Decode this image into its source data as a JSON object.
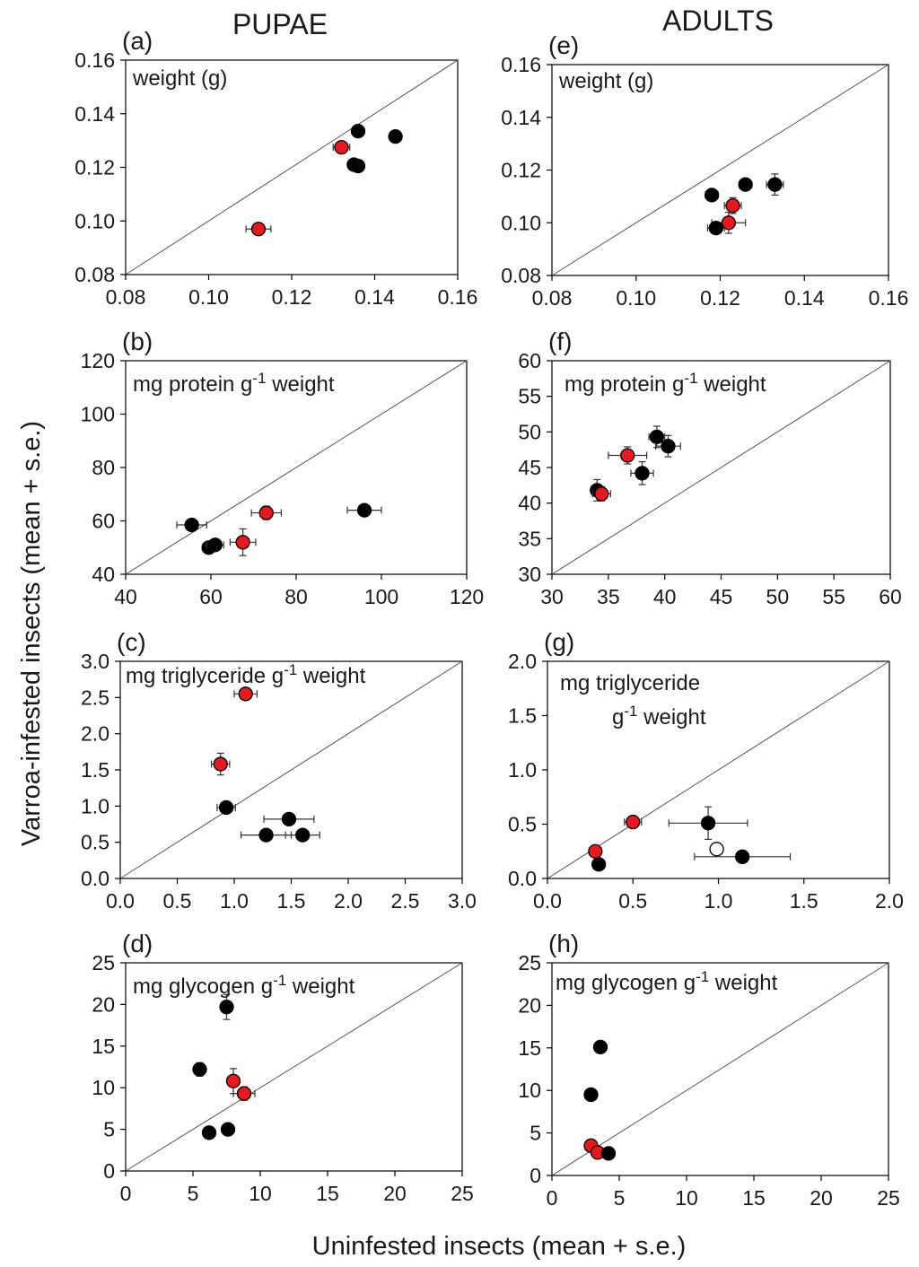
{
  "figure": {
    "column_titles": [
      "PUPAE",
      "ADULTS"
    ],
    "ylabel": "Varroa-infested insects (mean + s.e.)",
    "xlabel": "Uninfested insects (mean + s.e.)",
    "colors": {
      "infested": "#e8191e",
      "uninfested": "#000000",
      "open": "#ffffff",
      "axis": "#000000",
      "diag": "#555555"
    }
  },
  "chart_data": [
    {
      "type": "scatter",
      "id": "a",
      "panel_label": "(a)",
      "title": "weight (g)",
      "xlim": [
        0.08,
        0.16
      ],
      "ylim": [
        0.08,
        0.16
      ],
      "xticks": [
        "0.08",
        "0.10",
        "0.12",
        "0.14",
        "0.16"
      ],
      "yticks": [
        "0.08",
        "0.10",
        "0.12",
        "0.14",
        "0.16"
      ],
      "points": [
        {
          "x": 0.112,
          "y": 0.097,
          "xerr": 0.003,
          "yerr": 0.0015,
          "color": "red"
        },
        {
          "x": 0.132,
          "y": 0.1275,
          "xerr": 0.002,
          "yerr": 0.0015,
          "color": "red"
        },
        {
          "x": 0.136,
          "y": 0.1335,
          "xerr": 0.001,
          "yerr": 0.001,
          "color": "black"
        },
        {
          "x": 0.145,
          "y": 0.1315,
          "xerr": 0.001,
          "yerr": 0.0015,
          "color": "black"
        },
        {
          "x": 0.135,
          "y": 0.121,
          "xerr": 0.001,
          "yerr": 0.001,
          "color": "black"
        },
        {
          "x": 0.136,
          "y": 0.1205,
          "xerr": 0.001,
          "yerr": 0.001,
          "color": "black"
        }
      ]
    },
    {
      "type": "scatter",
      "id": "e",
      "panel_label": "(e)",
      "title": "weight (g)",
      "xlim": [
        0.08,
        0.16
      ],
      "ylim": [
        0.08,
        0.16
      ],
      "xticks": [
        "0.08",
        "0.10",
        "0.12",
        "0.14",
        "0.16"
      ],
      "yticks": [
        "0.08",
        "0.10",
        "0.12",
        "0.14",
        "0.16"
      ],
      "points": [
        {
          "x": 0.118,
          "y": 0.1105,
          "xerr": 0.0015,
          "yerr": 0.0015,
          "color": "black"
        },
        {
          "x": 0.126,
          "y": 0.1145,
          "xerr": 0.0015,
          "yerr": 0.002,
          "color": "black"
        },
        {
          "x": 0.133,
          "y": 0.1145,
          "xerr": 0.002,
          "yerr": 0.004,
          "color": "black"
        },
        {
          "x": 0.123,
          "y": 0.1065,
          "xerr": 0.002,
          "yerr": 0.003,
          "color": "red"
        },
        {
          "x": 0.122,
          "y": 0.1,
          "xerr": 0.004,
          "yerr": 0.004,
          "color": "red"
        },
        {
          "x": 0.119,
          "y": 0.098,
          "xerr": 0.002,
          "yerr": 0.002,
          "color": "black"
        }
      ]
    },
    {
      "type": "scatter",
      "id": "b",
      "panel_label": "(b)",
      "title": "mg protein g-1 weight",
      "xlim": [
        40,
        120
      ],
      "ylim": [
        40,
        120
      ],
      "xticks": [
        "40",
        "60",
        "80",
        "100",
        "120"
      ],
      "yticks": [
        "40",
        "60",
        "80",
        "100",
        "120"
      ],
      "points": [
        {
          "x": 55.5,
          "y": 58.5,
          "xerr": 3.5,
          "yerr": 2,
          "color": "black"
        },
        {
          "x": 59.5,
          "y": 50,
          "xerr": 1.5,
          "yerr": 1.5,
          "color": "black"
        },
        {
          "x": 61,
          "y": 51,
          "xerr": 2,
          "yerr": 1.5,
          "color": "black"
        },
        {
          "x": 67.5,
          "y": 52,
          "xerr": 3,
          "yerr": 5,
          "color": "red"
        },
        {
          "x": 73,
          "y": 63,
          "xerr": 3.5,
          "yerr": 2.5,
          "color": "red"
        },
        {
          "x": 96,
          "y": 64,
          "xerr": 4,
          "yerr": 2,
          "color": "black"
        }
      ]
    },
    {
      "type": "scatter",
      "id": "f",
      "panel_label": "(f)",
      "title": "mg protein g-1 weight",
      "xlim": [
        30,
        60
      ],
      "ylim": [
        30,
        60
      ],
      "xticks": [
        "30",
        "35",
        "40",
        "45",
        "50",
        "55",
        "60"
      ],
      "yticks": [
        "30",
        "35",
        "40",
        "45",
        "50",
        "55",
        "60"
      ],
      "points": [
        {
          "x": 39.3,
          "y": 49.3,
          "xerr": 0.7,
          "yerr": 1.5,
          "color": "black"
        },
        {
          "x": 40.3,
          "y": 48,
          "xerr": 1.1,
          "yerr": 1.5,
          "color": "black"
        },
        {
          "x": 36.7,
          "y": 46.7,
          "xerr": 1.7,
          "yerr": 1.2,
          "color": "red"
        },
        {
          "x": 38,
          "y": 44.2,
          "xerr": 1,
          "yerr": 1.6,
          "color": "black"
        },
        {
          "x": 34,
          "y": 41.8,
          "xerr": 0.5,
          "yerr": 1.5,
          "color": "black"
        },
        {
          "x": 34.4,
          "y": 41.3,
          "xerr": 0.8,
          "yerr": 1,
          "color": "red"
        }
      ]
    },
    {
      "type": "scatter",
      "id": "c",
      "panel_label": "(c)",
      "title": "mg triglyceride g-1 weight",
      "xlim": [
        0,
        3
      ],
      "ylim": [
        0,
        3
      ],
      "xticks": [
        "0.0",
        "0.5",
        "1.0",
        "1.5",
        "2.0",
        "2.5",
        "3.0"
      ],
      "yticks": [
        "0.0",
        "0.5",
        "1.0",
        "1.5",
        "2.0",
        "2.5",
        "3.0"
      ],
      "points": [
        {
          "x": 1.1,
          "y": 2.55,
          "xerr": 0.1,
          "yerr": 0.05,
          "color": "red"
        },
        {
          "x": 0.88,
          "y": 1.58,
          "xerr": 0.08,
          "yerr": 0.15,
          "color": "red"
        },
        {
          "x": 0.93,
          "y": 0.98,
          "xerr": 0.08,
          "yerr": 0.05,
          "color": "black"
        },
        {
          "x": 1.48,
          "y": 0.82,
          "xerr": 0.22,
          "yerr": 0.05,
          "color": "black"
        },
        {
          "x": 1.28,
          "y": 0.6,
          "xerr": 0.22,
          "yerr": 0.03,
          "color": "black"
        },
        {
          "x": 1.6,
          "y": 0.6,
          "xerr": 0.15,
          "yerr": 0.03,
          "color": "black"
        }
      ]
    },
    {
      "type": "scatter",
      "id": "g",
      "panel_label": "(g)",
      "title": "mg triglyceride",
      "title_line2": "g-1 weight",
      "xlim": [
        0,
        2
      ],
      "ylim": [
        0,
        2
      ],
      "xticks": [
        "0.0",
        "0.5",
        "1.0",
        "1.5",
        "2.0"
      ],
      "yticks": [
        "0.0",
        "0.5",
        "1.0",
        "1.5",
        "2.0"
      ],
      "points": [
        {
          "x": 0.5,
          "y": 0.52,
          "xerr": 0.05,
          "yerr": 0.03,
          "color": "red"
        },
        {
          "x": 0.28,
          "y": 0.25,
          "xerr": 0.03,
          "yerr": 0.03,
          "color": "red"
        },
        {
          "x": 0.3,
          "y": 0.13,
          "xerr": 0.02,
          "yerr": 0.02,
          "color": "black"
        },
        {
          "x": 0.94,
          "y": 0.51,
          "xerr": 0.23,
          "yerr": 0.15,
          "color": "black"
        },
        {
          "x": 0.99,
          "y": 0.27,
          "xerr": 0.02,
          "yerr": 0.02,
          "color": "open"
        },
        {
          "x": 1.14,
          "y": 0.2,
          "xerr": 0.28,
          "yerr": 0.02,
          "color": "black"
        }
      ]
    },
    {
      "type": "scatter",
      "id": "d",
      "panel_label": "(d)",
      "title": "mg glycogen g-1 weight",
      "xlim": [
        0,
        25
      ],
      "ylim": [
        0,
        25
      ],
      "xticks": [
        "0",
        "5",
        "10",
        "15",
        "20",
        "25"
      ],
      "yticks": [
        "0",
        "5",
        "10",
        "15",
        "20",
        "25"
      ],
      "points": [
        {
          "x": 7.5,
          "y": 19.7,
          "xerr": 0.4,
          "yerr": 1.5,
          "color": "black"
        },
        {
          "x": 5.5,
          "y": 12.2,
          "xerr": 0.4,
          "yerr": 0.8,
          "color": "black"
        },
        {
          "x": 8,
          "y": 10.8,
          "xerr": 0.4,
          "yerr": 1.5,
          "color": "red"
        },
        {
          "x": 8.8,
          "y": 9.3,
          "xerr": 0.8,
          "yerr": 0.8,
          "color": "red"
        },
        {
          "x": 6.2,
          "y": 4.6,
          "xerr": 0.4,
          "yerr": 0.4,
          "color": "black"
        },
        {
          "x": 7.6,
          "y": 5,
          "xerr": 0.4,
          "yerr": 0.4,
          "color": "black"
        }
      ]
    },
    {
      "type": "scatter",
      "id": "h",
      "panel_label": "(h)",
      "title": "mg glycogen g-1 weight",
      "xlim": [
        0,
        25
      ],
      "ylim": [
        0,
        25
      ],
      "xticks": [
        "0",
        "5",
        "10",
        "15",
        "20",
        "25"
      ],
      "yticks": [
        "0",
        "5",
        "10",
        "15",
        "20",
        "25"
      ],
      "points": [
        {
          "x": 3.6,
          "y": 15.1,
          "xerr": 0.2,
          "yerr": 0.2,
          "color": "black"
        },
        {
          "x": 2.9,
          "y": 9.5,
          "xerr": 0.2,
          "yerr": 0.2,
          "color": "black"
        },
        {
          "x": 2.9,
          "y": 3.5,
          "xerr": 0.2,
          "yerr": 0.2,
          "color": "red"
        },
        {
          "x": 3.4,
          "y": 2.7,
          "xerr": 0.2,
          "yerr": 0.2,
          "color": "red"
        },
        {
          "x": 4.2,
          "y": 2.6,
          "xerr": 0.2,
          "yerr": 0.2,
          "color": "black"
        }
      ]
    }
  ]
}
